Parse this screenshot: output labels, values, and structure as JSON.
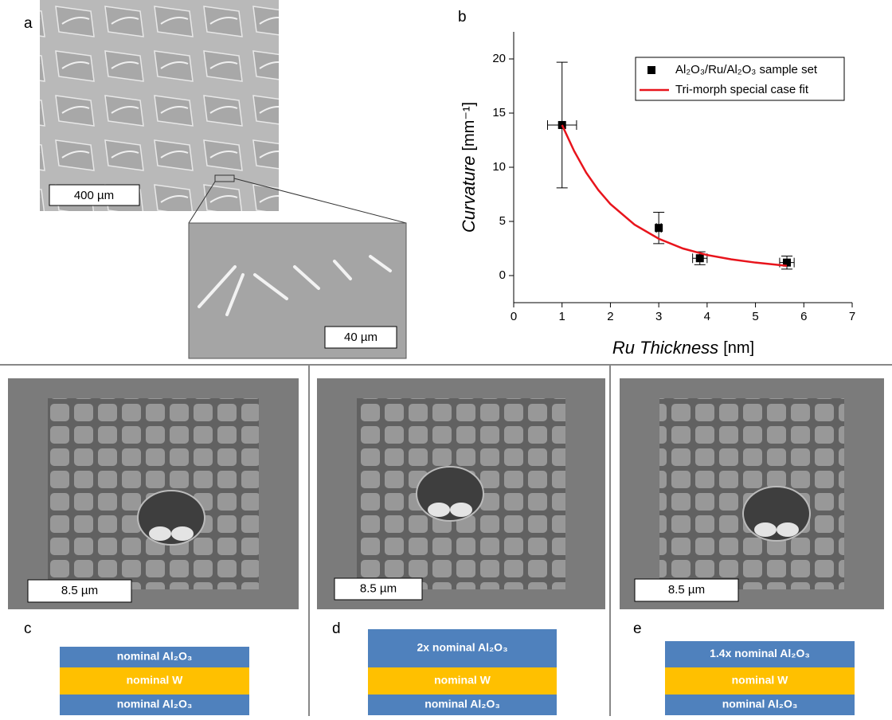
{
  "panels": {
    "a": {
      "label": "a",
      "scale_bar": "400 µm",
      "inset_scale_bar": "40 µm"
    },
    "c": {
      "label": "c",
      "scale_bar": "8.5 µm",
      "layers": [
        "nominal Al₂O₃",
        "nominal W",
        "nominal Al₂O₃"
      ]
    },
    "d": {
      "label": "d",
      "scale_bar": "8.5 µm",
      "layers": [
        "2x nominal  Al₂O₃",
        "nominal W",
        "nominal  Al₂O₃"
      ]
    },
    "e": {
      "label": "e",
      "scale_bar": "8.5 µm",
      "layers": [
        "1.4x nominal  Al₂O₃",
        "nominal W",
        "nominal  Al₂O₃"
      ]
    }
  },
  "chart_data": {
    "type": "scatter",
    "label": "b",
    "xlabel": "Ru Thickness",
    "xunit": "[nm]",
    "ylabel": "Curvature",
    "yunit": "[mm⁻¹]",
    "xlim": [
      0,
      7
    ],
    "ylim": [
      -2.5,
      22.5
    ],
    "xticks": [
      0,
      1,
      2,
      3,
      4,
      5,
      6,
      7
    ],
    "yticks": [
      0,
      5,
      10,
      15,
      20
    ],
    "legend": "upper right",
    "series": [
      {
        "name": "Al₂O₃/Ru/Al₂O₃ sample set",
        "type": "scatter",
        "color": "#000000",
        "x": [
          1,
          3,
          3.85,
          5.65
        ],
        "values": [
          13.9,
          4.4,
          1.6,
          1.2
        ],
        "xerr": [
          0.3,
          0.05,
          0.15,
          0.15
        ],
        "yerr": [
          5.8,
          1.45,
          0.6,
          0.6
        ]
      },
      {
        "name": "Tri-morph special case fit",
        "type": "line",
        "color": "#e8141c",
        "x": [
          1,
          1.25,
          1.5,
          1.75,
          2,
          2.5,
          3,
          3.5,
          4,
          4.5,
          5,
          5.65
        ],
        "values": [
          13.9,
          11.5,
          9.5,
          7.9,
          6.6,
          4.7,
          3.4,
          2.5,
          1.9,
          1.5,
          1.2,
          0.9
        ]
      }
    ]
  }
}
